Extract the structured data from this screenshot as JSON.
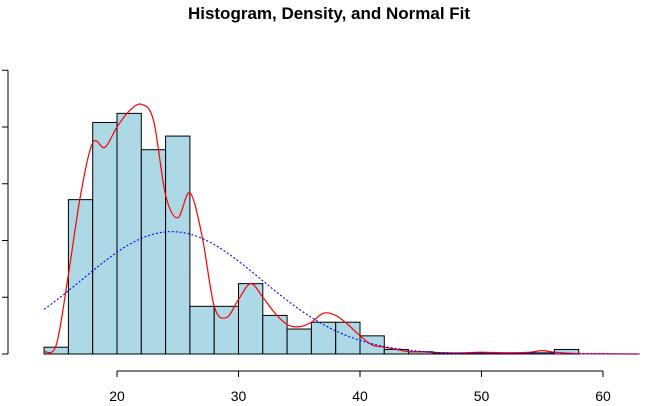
{
  "chart_data": {
    "type": "bar",
    "title": "Histogram, Density, and Normal Fit",
    "xlabel": "",
    "ylabel": "",
    "x_ticks": [
      20,
      30,
      40,
      50,
      60
    ],
    "xlim": [
      12.5,
      63
    ],
    "ylim": [
      0,
      0.12
    ],
    "y_ticks": [
      0,
      0.025,
      0.05,
      0.075,
      0.1,
      0.125
    ],
    "y_tick_labels_shown": false,
    "grid": false,
    "legend": "none",
    "bins": {
      "edges": [
        14,
        16,
        18,
        20,
        22,
        24,
        26,
        28,
        30,
        32,
        34,
        36,
        38,
        40,
        42,
        44,
        46,
        48,
        50,
        52,
        54,
        56,
        58
      ],
      "values": [
        0.003,
        0.068,
        0.102,
        0.106,
        0.09,
        0.096,
        0.021,
        0.021,
        0.031,
        0.017,
        0.011,
        0.014,
        0.014,
        0.008,
        0.002,
        0.001,
        0.0005,
        0.0005,
        0.0005,
        0.0005,
        0.0005,
        0.002,
        0.0005
      ],
      "fill_color": "#add8e6",
      "edge_color": "#000000"
    },
    "series": [
      {
        "kind": "density",
        "color": "#ff0000",
        "style": "solid",
        "x": [
          14,
          15,
          16,
          17,
          18,
          19,
          20,
          21,
          22,
          23,
          24,
          25,
          26,
          27,
          28,
          29,
          30,
          31,
          32,
          33,
          34,
          35,
          36,
          37,
          38,
          39,
          40,
          41,
          42,
          43,
          44,
          45,
          46,
          48,
          50,
          52,
          54,
          55,
          56,
          58,
          60,
          63
        ],
        "y": [
          0.001,
          0.004,
          0.035,
          0.07,
          0.093,
          0.091,
          0.1,
          0.107,
          0.11,
          0.103,
          0.07,
          0.06,
          0.071,
          0.052,
          0.021,
          0.016,
          0.024,
          0.031,
          0.025,
          0.018,
          0.013,
          0.012,
          0.014,
          0.018,
          0.017,
          0.013,
          0.008,
          0.004,
          0.003,
          0.002,
          0.001,
          0.001,
          0.0007,
          0.0004,
          0.0008,
          0.0005,
          0.0008,
          0.0015,
          0.0008,
          0.0002,
          0.0001,
          0
        ]
      },
      {
        "kind": "normal-fit",
        "color": "#0000ff",
        "style": "dotted",
        "mean": 24.5,
        "sd": 7.4,
        "x_range": [
          14,
          63
        ]
      }
    ]
  }
}
